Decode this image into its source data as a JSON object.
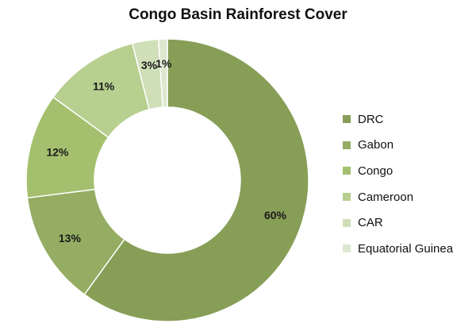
{
  "chart_data": {
    "type": "pie",
    "title": "Congo Basin Rainforest Cover",
    "categories": [
      "DRC",
      "Gabon",
      "Congo",
      "Cameroon",
      "CAR",
      "Equatorial Guinea"
    ],
    "values": [
      60,
      13,
      12,
      11,
      3,
      1
    ],
    "labels": [
      "60%",
      "13%",
      "12%",
      "11%",
      "3%",
      "1%"
    ],
    "colors": [
      "#879e57",
      "#94ad63",
      "#a4c06e",
      "#b7cf8f",
      "#cfdfb8",
      "#dde8cf"
    ],
    "donut": true,
    "legend_position": "right"
  }
}
